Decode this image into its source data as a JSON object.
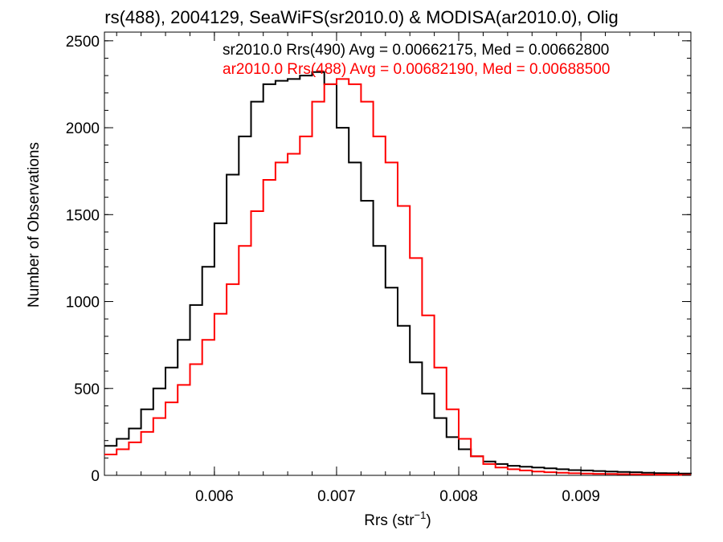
{
  "chart_data": {
    "type": "line",
    "title": "rs(488), 2004129, SeaWiFS(sr2010.0) & MODISA(ar2010.0), Olig",
    "xlabel": "Rrs (str",
    "xlabel_sup": "−1",
    "xlabel_close": ")",
    "ylabel": "Number of Observations",
    "xlim": [
      0.0051,
      0.0099
    ],
    "ylim": [
      0,
      2550
    ],
    "x_ticks": [
      {
        "value": 0.006,
        "label": "0.006"
      },
      {
        "value": 0.007,
        "label": "0.007"
      },
      {
        "value": 0.008,
        "label": "0.008"
      },
      {
        "value": 0.009,
        "label": "0.009"
      }
    ],
    "y_ticks": [
      {
        "value": 0,
        "label": "0"
      },
      {
        "value": 500,
        "label": "500"
      },
      {
        "value": 1000,
        "label": "1000"
      },
      {
        "value": 1500,
        "label": "1500"
      },
      {
        "value": 2000,
        "label": "2000"
      },
      {
        "value": 2500,
        "label": "2500"
      }
    ],
    "grid": false,
    "legend_position": "top-right",
    "series": [
      {
        "name": "sr2010.0 Rrs(490) Avg = 0.00662175, Med = 0.00662800",
        "color": "#000000",
        "x": [
          0.0051,
          0.0052,
          0.0053,
          0.0054,
          0.0055,
          0.0056,
          0.0057,
          0.0058,
          0.0059,
          0.006,
          0.0061,
          0.0062,
          0.0063,
          0.0064,
          0.0065,
          0.0066,
          0.0067,
          0.0068,
          0.0069,
          0.007,
          0.0071,
          0.0072,
          0.0073,
          0.0074,
          0.0075,
          0.0076,
          0.0077,
          0.0078,
          0.0079,
          0.008,
          0.0081,
          0.0082,
          0.0083,
          0.0084,
          0.0085,
          0.0086,
          0.0087,
          0.0088,
          0.0089,
          0.009,
          0.0091,
          0.0092,
          0.0093,
          0.0094,
          0.0095,
          0.0096,
          0.0097,
          0.0098,
          0.0099
        ],
        "values": [
          170,
          210,
          270,
          380,
          500,
          620,
          780,
          980,
          1200,
          1450,
          1730,
          1950,
          2150,
          2250,
          2270,
          2280,
          2300,
          2320,
          2250,
          2000,
          1800,
          1580,
          1320,
          1080,
          860,
          650,
          470,
          330,
          220,
          150,
          110,
          80,
          65,
          55,
          50,
          45,
          40,
          35,
          30,
          28,
          25,
          22,
          20,
          18,
          15,
          13,
          12,
          10,
          8
        ]
      },
      {
        "name": "ar2010.0 Rrs(488) Avg = 0.00682190, Med = 0.00688500",
        "color": "#ff0000",
        "x": [
          0.0051,
          0.0052,
          0.0053,
          0.0054,
          0.0055,
          0.0056,
          0.0057,
          0.0058,
          0.0059,
          0.006,
          0.0061,
          0.0062,
          0.0063,
          0.0064,
          0.0065,
          0.0066,
          0.0067,
          0.0068,
          0.0069,
          0.007,
          0.0071,
          0.0072,
          0.0073,
          0.0074,
          0.0075,
          0.0076,
          0.0077,
          0.0078,
          0.0079,
          0.008,
          0.0081,
          0.0082,
          0.0083,
          0.0084,
          0.0085,
          0.0086,
          0.0087,
          0.0088,
          0.0089,
          0.009,
          0.0091,
          0.0092,
          0.0093,
          0.0094,
          0.0095,
          0.0096,
          0.0097,
          0.0098,
          0.0099
        ],
        "values": [
          120,
          150,
          190,
          250,
          330,
          420,
          520,
          640,
          780,
          930,
          1100,
          1320,
          1520,
          1700,
          1800,
          1850,
          1950,
          2150,
          2250,
          2280,
          2250,
          2150,
          1950,
          1800,
          1550,
          1250,
          920,
          620,
          380,
          210,
          110,
          65,
          45,
          35,
          28,
          22,
          18,
          15,
          12,
          10,
          9,
          8,
          7,
          6,
          5,
          4,
          4,
          3,
          3
        ]
      }
    ]
  }
}
